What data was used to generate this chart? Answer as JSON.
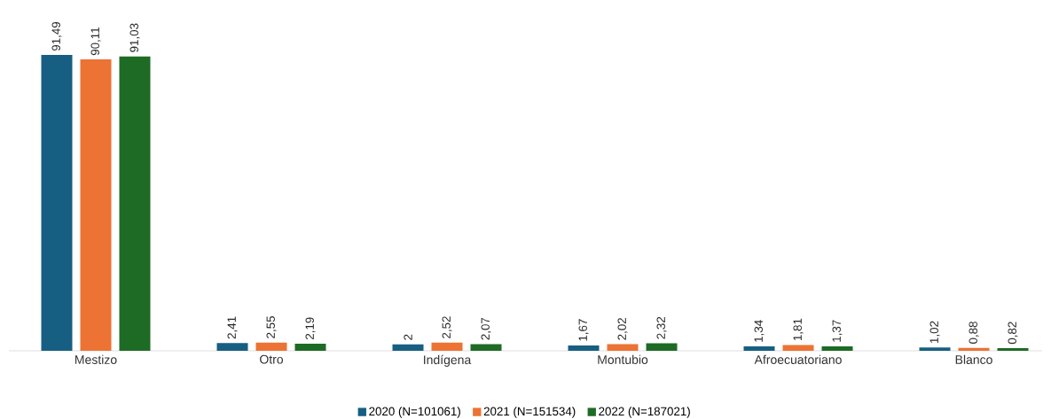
{
  "chart_data": {
    "type": "bar",
    "categories": [
      "Mestizo",
      "Otro",
      "Indígena",
      "Montubio",
      "Afroecuatoriano",
      "Blanco"
    ],
    "series": [
      {
        "name": "2020 (N=101061)",
        "color": "#175f82",
        "values": [
          91.49,
          2.41,
          2,
          1.67,
          1.34,
          1.02
        ],
        "value_labels": [
          "91,49",
          "2,41",
          "2",
          "1,67",
          "1,34",
          "1,02"
        ]
      },
      {
        "name": "2021 (N=151534)",
        "color": "#ec7334",
        "values": [
          90.11,
          2.55,
          2.52,
          2.02,
          1.81,
          0.88
        ],
        "value_labels": [
          "90,11",
          "2,55",
          "2,52",
          "2,02",
          "1,81",
          "0,88"
        ]
      },
      {
        "name": "2022 (N=187021)",
        "color": "#1e6b26",
        "values": [
          91.03,
          2.19,
          2.07,
          2.32,
          1.37,
          0.82
        ],
        "value_labels": [
          "91,03",
          "2,19",
          "2,07",
          "2,32",
          "1,37",
          "0,82"
        ]
      }
    ],
    "legend": "bottom"
  }
}
